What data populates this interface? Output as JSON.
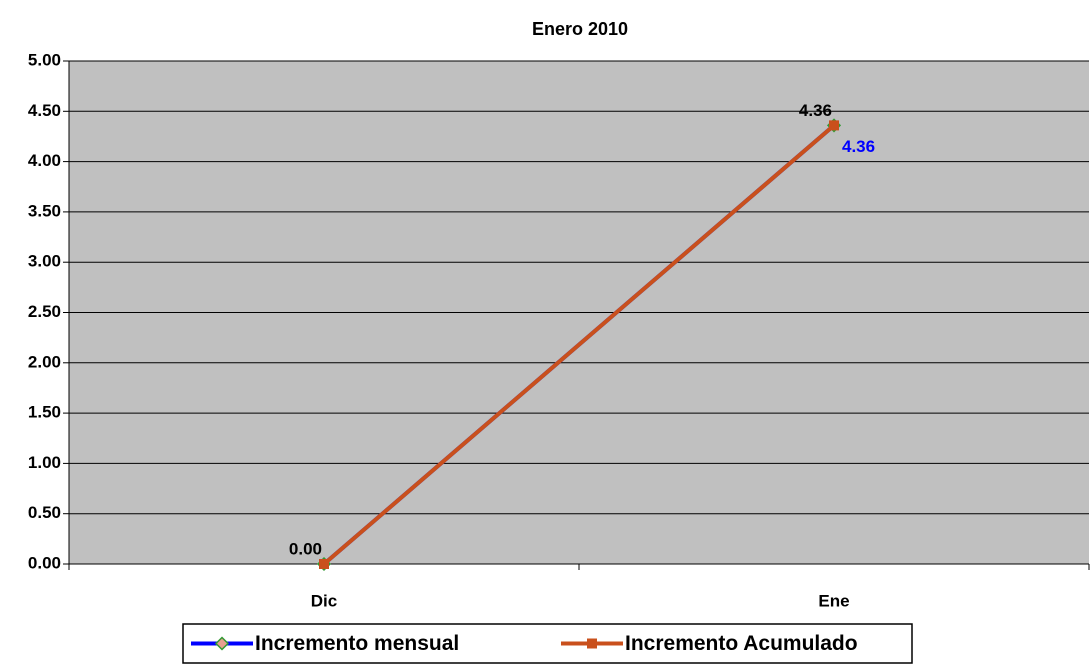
{
  "chart_data": {
    "type": "line",
    "title": "Enero 2010",
    "categories": [
      "Dic",
      "Ene"
    ],
    "series": [
      {
        "name": "Incremento mensual",
        "color": "#0000ff",
        "marker_color": "#e8a090",
        "values": [
          0,
          4.36
        ],
        "value_labels": [
          null,
          "4.36"
        ]
      },
      {
        "name": "Incremento Acumulado",
        "color": "#c9501c",
        "values": [
          0,
          4.36
        ],
        "value_labels": [
          "0.00",
          "4.36"
        ]
      }
    ],
    "ylim": [
      0,
      5
    ],
    "yticks": [
      {
        "value": 0,
        "label": "0.00"
      },
      {
        "value": 0.5,
        "label": "0.50"
      },
      {
        "value": 1,
        "label": "1.00"
      },
      {
        "value": 1.5,
        "label": "1.50"
      },
      {
        "value": 2,
        "label": "2.00"
      },
      {
        "value": 2.5,
        "label": "2.50"
      },
      {
        "value": 3,
        "label": "3.00"
      },
      {
        "value": 3.5,
        "label": "3.50"
      },
      {
        "value": 4,
        "label": "4.00"
      },
      {
        "value": 4.5,
        "label": "4.50"
      },
      {
        "value": 5,
        "label": "5.00"
      }
    ],
    "grid": true,
    "legend": "bottom"
  }
}
